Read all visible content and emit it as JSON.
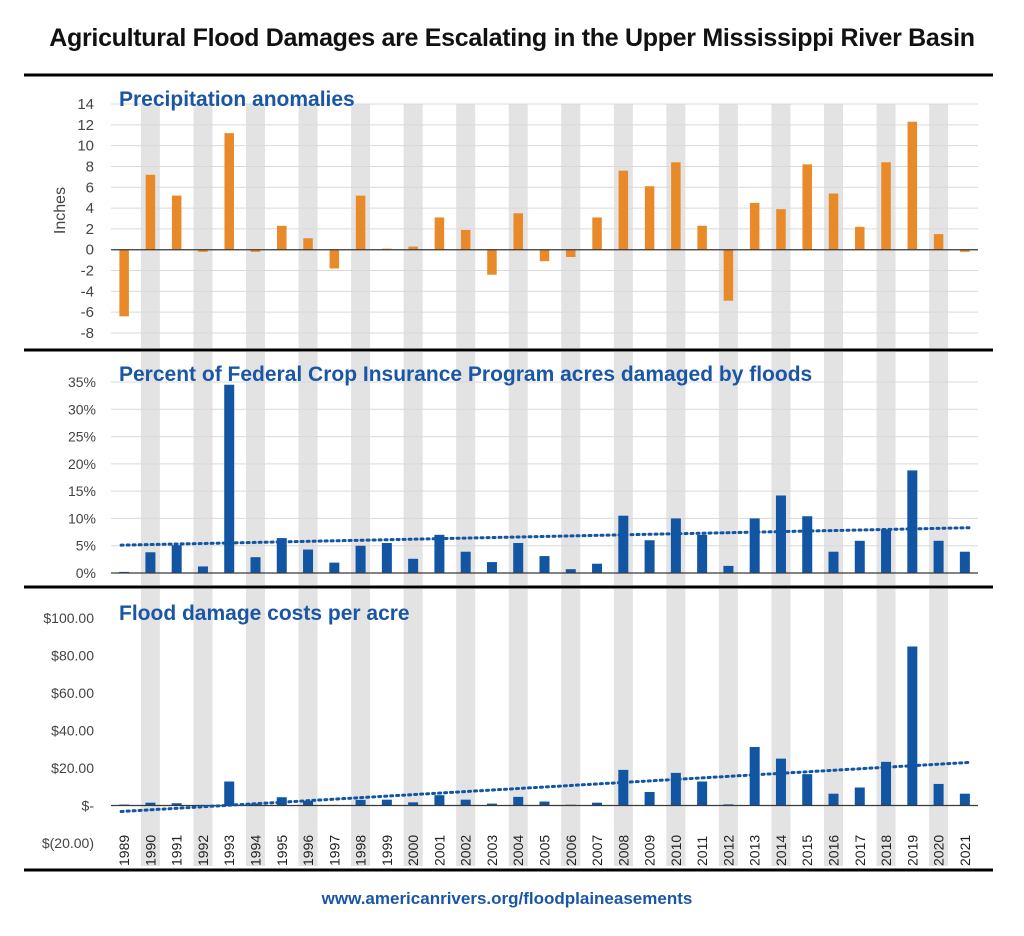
{
  "title": "Agricultural Flood Damages are Escalating in the Upper Mississippi River Basin",
  "footer": "www.americanrivers.org/floodplaineasements",
  "colors": {
    "orange": "#e8892a",
    "blue": "#1155a3",
    "band": "#e3e3e3",
    "grid": "#d9d9d9",
    "rule": "#000000"
  },
  "years": [
    "1989",
    "1990",
    "1991",
    "1992",
    "1993",
    "1994",
    "1995",
    "1996",
    "1997",
    "1998",
    "1999",
    "2000",
    "2001",
    "2002",
    "2003",
    "2004",
    "2005",
    "2006",
    "2007",
    "2008",
    "2009",
    "2010",
    "2011",
    "2012",
    "2013",
    "2014",
    "2015",
    "2016",
    "2017",
    "2018",
    "2019",
    "2020",
    "2021"
  ],
  "chart_data": [
    {
      "type": "bar",
      "title": "Precipitation anomalies",
      "ylabel": "Inches",
      "ylim": [
        -8,
        14
      ],
      "yticks": [
        {
          "v": 14,
          "label": "14"
        },
        {
          "v": 12,
          "label": "12"
        },
        {
          "v": 10,
          "label": "10"
        },
        {
          "v": 8,
          "label": "8"
        },
        {
          "v": 6,
          "label": "6"
        },
        {
          "v": 4,
          "label": "4"
        },
        {
          "v": 2,
          "label": "2"
        },
        {
          "v": 0,
          "label": "0"
        },
        {
          "v": -2,
          "label": "-2"
        },
        {
          "v": -4,
          "label": "-4"
        },
        {
          "v": -6,
          "label": "-6"
        },
        {
          "v": -8,
          "label": "-8"
        }
      ],
      "grid": true,
      "series": [
        {
          "color": "#e8892a",
          "values": [
            -6.4,
            7.2,
            5.2,
            -0.2,
            11.2,
            -0.2,
            2.3,
            1.1,
            -1.8,
            5.2,
            0.1,
            0.3,
            3.1,
            1.9,
            -2.4,
            3.5,
            -1.1,
            -0.7,
            3.1,
            7.6,
            6.1,
            8.4,
            2.3,
            -4.9,
            4.5,
            3.9,
            8.2,
            5.4,
            2.2,
            8.4,
            12.3,
            1.5,
            -0.2
          ]
        }
      ]
    },
    {
      "type": "bar",
      "title": "Percent of Federal Crop Insurance Program acres damaged by floods",
      "ylabel": "",
      "ylim": [
        0,
        35
      ],
      "yticks": [
        {
          "v": 35,
          "label": "35%"
        },
        {
          "v": 30,
          "label": "30%"
        },
        {
          "v": 25,
          "label": "25%"
        },
        {
          "v": 20,
          "label": "20%"
        },
        {
          "v": 15,
          "label": "15%"
        },
        {
          "v": 10,
          "label": "10%"
        },
        {
          "v": 5,
          "label": "5%"
        },
        {
          "v": 0,
          "label": "0%"
        }
      ],
      "grid": true,
      "series": [
        {
          "color": "#1155a3",
          "values": [
            0.2,
            3.8,
            5.1,
            1.2,
            34.5,
            2.9,
            6.4,
            4.3,
            1.9,
            5.0,
            5.5,
            2.6,
            7.0,
            3.9,
            2.0,
            5.5,
            3.1,
            0.7,
            1.7,
            10.5,
            6.0,
            10.0,
            7.0,
            1.3,
            10.0,
            14.2,
            10.4,
            3.9,
            5.9,
            8.0,
            18.8,
            5.9,
            3.9
          ]
        }
      ],
      "trendline": {
        "style": "dotted",
        "start": 5.1,
        "end": 8.3
      }
    },
    {
      "type": "bar",
      "title": "Flood damage costs per acre",
      "ylabel": "",
      "ylim": [
        -20,
        100
      ],
      "yticks": [
        {
          "v": 100,
          "label": "$100.00"
        },
        {
          "v": 80,
          "label": "$80.00"
        },
        {
          "v": 60,
          "label": "$60.00"
        },
        {
          "v": 40,
          "label": "$40.00"
        },
        {
          "v": 20,
          "label": "$20.00"
        },
        {
          "v": 0,
          "label": "$-"
        },
        {
          "v": -20,
          "label": "$(20.00)"
        }
      ],
      "grid": false,
      "series": [
        {
          "color": "#1155a3",
          "values": [
            0.5,
            1.5,
            1.2,
            0.3,
            12.8,
            1.0,
            4.4,
            2.5,
            0.3,
            3.0,
            3.1,
            1.7,
            5.5,
            3.1,
            1.0,
            4.6,
            2.1,
            0.4,
            1.5,
            19.0,
            7.2,
            17.4,
            12.8,
            0.6,
            31.2,
            25.0,
            16.7,
            6.3,
            9.6,
            23.3,
            84.8,
            11.5,
            6.3
          ]
        }
      ],
      "trendline": {
        "style": "dotted",
        "start": -3.2,
        "end": 23.0
      }
    }
  ]
}
